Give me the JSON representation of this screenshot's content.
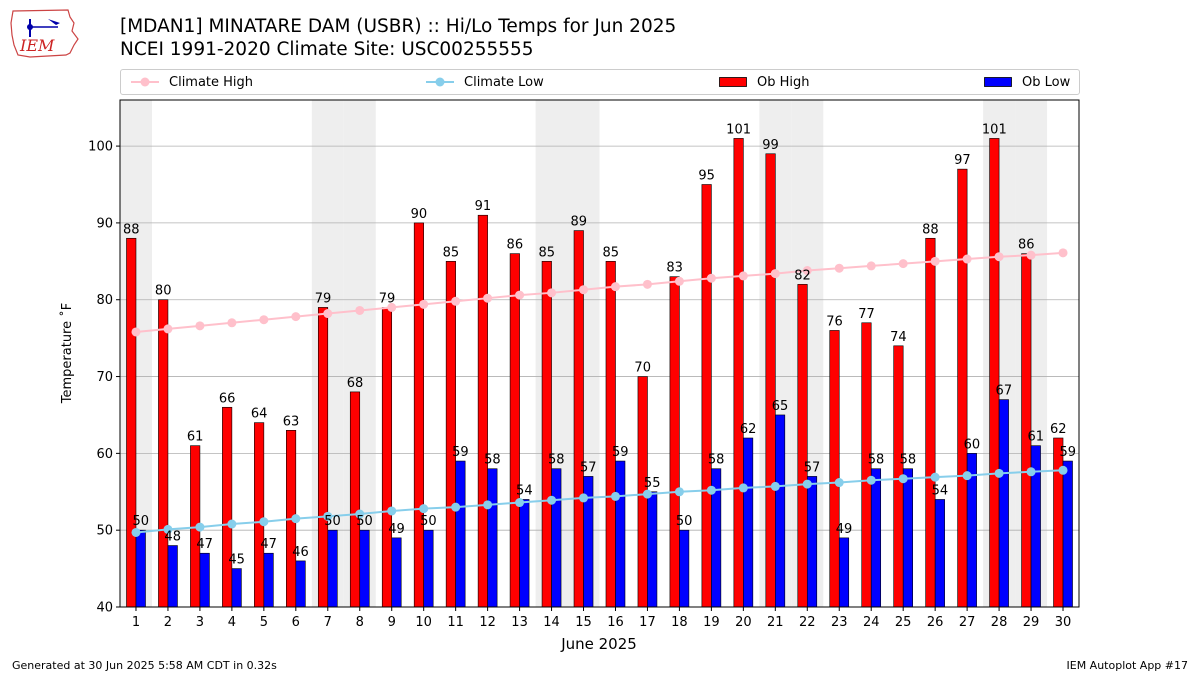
{
  "header": {
    "title_line1": "[MDAN1] MINATARE DAM (USBR) :: Hi/Lo Temps for Jun 2025",
    "title_line2": "NCEI 1991-2020 Climate Site: USC00255555",
    "logo_text": "IEM"
  },
  "footer": {
    "left": "Generated at 30 Jun 2025 5:58 AM CDT in 0.32s",
    "right": "IEM Autoplot App #17"
  },
  "colors": {
    "climate_high": "#ffc0cb",
    "climate_low": "#87ceeb",
    "ob_high": "#ff0000",
    "ob_low": "#0000ff",
    "weekend_shade": "#eeeeee",
    "grid": "#b0b0b0"
  },
  "chart_data": {
    "type": "bar",
    "xlabel": "June 2025",
    "ylabel": "Temperature ˚F",
    "ylim": [
      40,
      106
    ],
    "yticks": [
      40,
      50,
      60,
      70,
      80,
      90,
      100
    ],
    "grid": "horizontal",
    "legend_placement": "top",
    "categories": [
      1,
      2,
      3,
      4,
      5,
      6,
      7,
      8,
      9,
      10,
      11,
      12,
      13,
      14,
      15,
      16,
      17,
      18,
      19,
      20,
      21,
      22,
      23,
      24,
      25,
      26,
      27,
      28,
      29,
      30
    ],
    "shaded_days": [
      1,
      7,
      8,
      14,
      15,
      21,
      22,
      28,
      29
    ],
    "series": [
      {
        "name": "Climate High",
        "kind": "line",
        "values": [
          75.8,
          76.2,
          76.6,
          77.0,
          77.4,
          77.8,
          78.2,
          78.6,
          79.0,
          79.4,
          79.8,
          80.2,
          80.6,
          80.9,
          81.3,
          81.7,
          82.0,
          82.4,
          82.8,
          83.1,
          83.4,
          83.8,
          84.1,
          84.4,
          84.7,
          85.0,
          85.3,
          85.6,
          85.8,
          86.1
        ]
      },
      {
        "name": "Climate Low",
        "kind": "line",
        "values": [
          49.7,
          50.1,
          50.4,
          50.8,
          51.1,
          51.5,
          51.8,
          52.1,
          52.5,
          52.8,
          53.0,
          53.3,
          53.6,
          53.9,
          54.2,
          54.4,
          54.7,
          55.0,
          55.2,
          55.5,
          55.7,
          56.0,
          56.2,
          56.5,
          56.7,
          56.9,
          57.1,
          57.4,
          57.6,
          57.8
        ]
      },
      {
        "name": "Ob High",
        "kind": "bar",
        "values": [
          88,
          80,
          61,
          66,
          64,
          63,
          79,
          68,
          79,
          90,
          85,
          91,
          86,
          85,
          89,
          85,
          70,
          83,
          95,
          101,
          99,
          82,
          76,
          77,
          74,
          88,
          97,
          101,
          86,
          62
        ]
      },
      {
        "name": "Ob Low",
        "kind": "bar",
        "values": [
          50,
          48,
          47,
          45,
          47,
          46,
          50,
          50,
          49,
          50,
          59,
          58,
          54,
          58,
          57,
          59,
          55,
          50,
          58,
          62,
          65,
          57,
          49,
          58,
          58,
          54,
          60,
          67,
          61,
          59
        ]
      }
    ]
  }
}
